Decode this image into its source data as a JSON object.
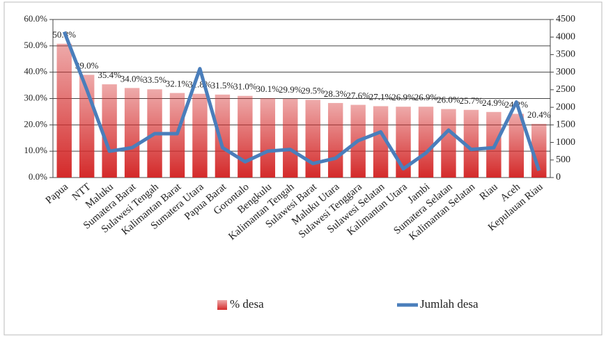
{
  "chart_data": {
    "type": "bar_line",
    "categories": [
      "Papua",
      "NTT",
      "Maluku",
      "Sumatera Barat",
      "Sulawesi Tengah",
      "Kalimantan Barat",
      "Sumatera Utara",
      "Papua Barat",
      "Gorontalo",
      "Bengkulu",
      "Kalimantan Tengah",
      "Sulawesi Barat",
      "Maluku Utara",
      "Sulawesi Tenggara",
      "Sulawesi Selatan",
      "Kalimantan Utara",
      "Jambi",
      "Sumatera Selatan",
      "Kalimantan Selatan",
      "Riau",
      "Aceh",
      "Kepulauan Riau"
    ],
    "series": [
      {
        "name": "% desa",
        "color": "#d42a2a",
        "axis": "y",
        "values": [
          50.8,
          39.0,
          35.4,
          34.0,
          33.5,
          32.1,
          31.8,
          31.5,
          31.0,
          30.1,
          29.9,
          29.5,
          28.3,
          27.6,
          27.1,
          26.9,
          26.9,
          26.0,
          25.7,
          24.9,
          24.2,
          20.4
        ],
        "value_labels": [
          "50.8%",
          "39.0%",
          "35.4%",
          "34.0%",
          "33.5%",
          "32.1%",
          "31.8%",
          "31.5%",
          "31.0%",
          "30.1%",
          "29.9%",
          "29.5%",
          "28.3%",
          "27.6%",
          "27.1%",
          "26.9%",
          "26.9%",
          "26.0%",
          "25.7%",
          "24.9%",
          "24.2%",
          "20.4%"
        ]
      },
      {
        "name": "Jumlah desa",
        "color": "#4a7ebb",
        "axis": "y2",
        "values": [
          4150,
          2500,
          750,
          850,
          1250,
          1250,
          3100,
          850,
          450,
          750,
          800,
          400,
          550,
          1050,
          1300,
          250,
          700,
          1350,
          800,
          850,
          2150,
          200
        ]
      }
    ],
    "ylim": [
      0,
      60
    ],
    "yticks": [
      {
        "value": 0,
        "label": "0.0%"
      },
      {
        "value": 10,
        "label": "10.0%"
      },
      {
        "value": 20,
        "label": "20.0%"
      },
      {
        "value": 30,
        "label": "30.0%"
      },
      {
        "value": 40,
        "label": "40.0%"
      },
      {
        "value": 50,
        "label": "50.0%"
      },
      {
        "value": 60,
        "label": "60.0%"
      }
    ],
    "y2lim": [
      0,
      4500
    ],
    "y2ticks": [
      0,
      500,
      1000,
      1500,
      2000,
      2500,
      3000,
      3500,
      4000,
      4500
    ],
    "grid": true,
    "legend": "bottom"
  }
}
